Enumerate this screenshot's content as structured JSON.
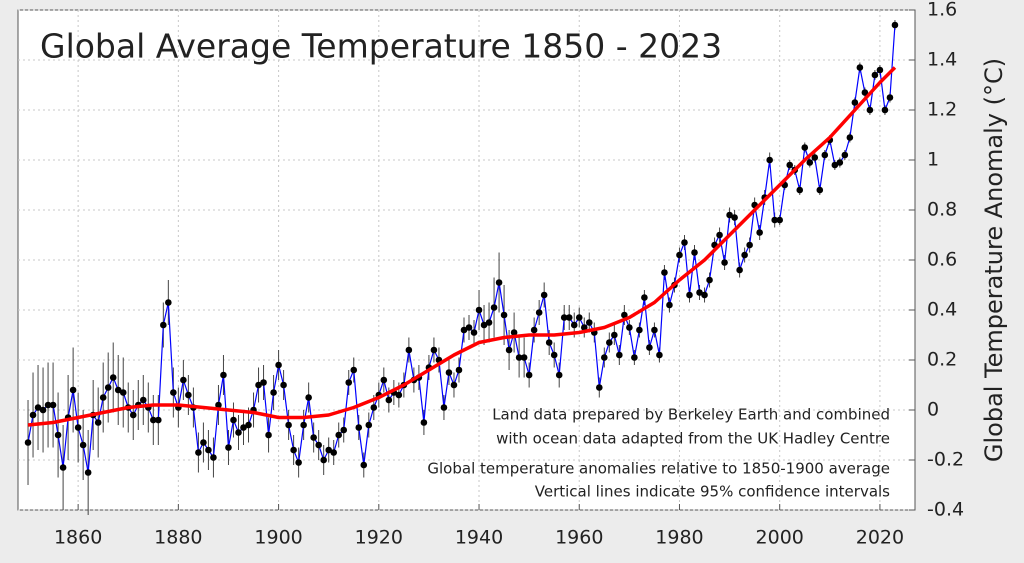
{
  "chart_data": {
    "type": "line",
    "title": "Global Average Temperature 1850 - 2023",
    "y_label": "Global Temperature Anomaly (°C)",
    "annotations": [
      "Land data prepared by Berkeley Earth and combined",
      "with ocean data adapted from the UK Hadley Centre",
      "Global temperature anomalies relative to 1850-1900 average",
      "Vertical lines indicate 95% confidence intervals"
    ],
    "xlim": [
      1848,
      2027
    ],
    "xticks": [
      1860,
      1880,
      1900,
      1920,
      1940,
      1960,
      1980,
      2000,
      2020
    ],
    "ylim": [
      -0.4,
      1.6
    ],
    "yticks": [
      -0.4,
      -0.2,
      0,
      0.2,
      0.4,
      0.6,
      0.8,
      1,
      1.2,
      1.4,
      1.6
    ],
    "grid": true,
    "y_axis_side": "right",
    "x": [
      1850,
      1851,
      1852,
      1853,
      1854,
      1855,
      1856,
      1857,
      1858,
      1859,
      1860,
      1861,
      1862,
      1863,
      1864,
      1865,
      1866,
      1867,
      1868,
      1869,
      1870,
      1871,
      1872,
      1873,
      1874,
      1875,
      1876,
      1877,
      1878,
      1879,
      1880,
      1881,
      1882,
      1883,
      1884,
      1885,
      1886,
      1887,
      1888,
      1889,
      1890,
      1891,
      1892,
      1893,
      1894,
      1895,
      1896,
      1897,
      1898,
      1899,
      1900,
      1901,
      1902,
      1903,
      1904,
      1905,
      1906,
      1907,
      1908,
      1909,
      1910,
      1911,
      1912,
      1913,
      1914,
      1915,
      1916,
      1917,
      1918,
      1919,
      1920,
      1921,
      1922,
      1923,
      1924,
      1925,
      1926,
      1927,
      1928,
      1929,
      1930,
      1931,
      1932,
      1933,
      1934,
      1935,
      1936,
      1937,
      1938,
      1939,
      1940,
      1941,
      1942,
      1943,
      1944,
      1945,
      1946,
      1947,
      1948,
      1949,
      1950,
      1951,
      1952,
      1953,
      1954,
      1955,
      1956,
      1957,
      1958,
      1959,
      1960,
      1961,
      1962,
      1963,
      1964,
      1965,
      1966,
      1967,
      1968,
      1969,
      1970,
      1971,
      1972,
      1973,
      1974,
      1975,
      1976,
      1977,
      1978,
      1979,
      1980,
      1981,
      1982,
      1983,
      1984,
      1985,
      1986,
      1987,
      1988,
      1989,
      1990,
      1991,
      1992,
      1993,
      1994,
      1995,
      1996,
      1997,
      1998,
      1999,
      2000,
      2001,
      2002,
      2003,
      2004,
      2005,
      2006,
      2007,
      2008,
      2009,
      2010,
      2011,
      2012,
      2013,
      2014,
      2015,
      2016,
      2017,
      2018,
      2019,
      2020,
      2021,
      2022,
      2023
    ],
    "series": [
      {
        "color": "#0000ff",
        "marker_color": "#000000",
        "error_color": "#444444",
        "values": [
          -0.13,
          -0.02,
          0.01,
          0.0,
          0.02,
          0.02,
          -0.1,
          -0.23,
          -0.03,
          0.08,
          -0.07,
          -0.14,
          -0.25,
          -0.02,
          -0.05,
          0.05,
          0.09,
          0.13,
          0.08,
          0.07,
          0.01,
          -0.02,
          0.02,
          0.04,
          0.01,
          -0.04,
          -0.04,
          0.34,
          0.43,
          0.07,
          0.01,
          0.12,
          0.06,
          0.01,
          -0.17,
          -0.13,
          -0.16,
          -0.19,
          0.02,
          0.14,
          -0.15,
          -0.04,
          -0.09,
          -0.07,
          -0.06,
          0.0,
          0.1,
          0.11,
          -0.1,
          0.07,
          0.18,
          0.1,
          -0.06,
          -0.16,
          -0.21,
          -0.06,
          0.05,
          -0.11,
          -0.14,
          -0.2,
          -0.16,
          -0.17,
          -0.1,
          -0.08,
          0.11,
          0.16,
          -0.07,
          -0.22,
          -0.06,
          0.01,
          0.06,
          0.12,
          0.04,
          0.07,
          0.06,
          0.1,
          0.24,
          0.12,
          0.13,
          -0.05,
          0.17,
          0.24,
          0.2,
          0.01,
          0.15,
          0.1,
          0.16,
          0.32,
          0.33,
          0.31,
          0.4,
          0.34,
          0.35,
          0.41,
          0.51,
          0.38,
          0.24,
          0.31,
          0.21,
          0.21,
          0.14,
          0.32,
          0.39,
          0.46,
          0.27,
          0.22,
          0.14,
          0.37,
          0.37,
          0.34,
          0.37,
          0.33,
          0.35,
          0.31,
          0.09,
          0.21,
          0.27,
          0.3,
          0.22,
          0.38,
          0.33,
          0.21,
          0.32,
          0.45,
          0.25,
          0.32,
          0.22,
          0.55,
          0.42,
          0.5,
          0.62,
          0.67,
          0.46,
          0.63,
          0.47,
          0.46,
          0.52,
          0.66,
          0.7,
          0.59,
          0.78,
          0.77,
          0.56,
          0.62,
          0.66,
          0.82,
          0.71,
          0.85,
          1.0,
          0.76,
          0.76,
          0.9,
          0.98,
          0.96,
          0.88,
          1.05,
          0.99,
          1.01,
          0.88,
          1.02,
          1.08,
          0.98,
          0.99,
          1.02,
          1.09,
          1.23,
          1.37,
          1.27,
          1.2,
          1.34,
          1.36,
          1.2,
          1.25,
          1.54
        ],
        "errors": [
          0.17,
          0.17,
          0.17,
          0.17,
          0.17,
          0.17,
          0.17,
          0.17,
          0.17,
          0.17,
          0.14,
          0.14,
          0.17,
          0.14,
          0.14,
          0.14,
          0.14,
          0.14,
          0.14,
          0.14,
          0.1,
          0.1,
          0.1,
          0.1,
          0.1,
          0.1,
          0.1,
          0.09,
          0.09,
          0.1,
          0.08,
          0.08,
          0.08,
          0.08,
          0.08,
          0.08,
          0.08,
          0.08,
          0.08,
          0.08,
          0.07,
          0.07,
          0.07,
          0.07,
          0.07,
          0.07,
          0.07,
          0.07,
          0.07,
          0.07,
          0.06,
          0.06,
          0.06,
          0.06,
          0.06,
          0.06,
          0.06,
          0.06,
          0.06,
          0.06,
          0.05,
          0.05,
          0.05,
          0.05,
          0.05,
          0.05,
          0.05,
          0.05,
          0.05,
          0.05,
          0.05,
          0.05,
          0.05,
          0.05,
          0.05,
          0.05,
          0.05,
          0.05,
          0.05,
          0.05,
          0.05,
          0.05,
          0.05,
          0.05,
          0.05,
          0.05,
          0.05,
          0.05,
          0.05,
          0.05,
          0.08,
          0.08,
          0.08,
          0.12,
          0.12,
          0.12,
          0.08,
          0.08,
          0.08,
          0.08,
          0.05,
          0.05,
          0.05,
          0.05,
          0.05,
          0.05,
          0.05,
          0.05,
          0.05,
          0.05,
          0.04,
          0.04,
          0.04,
          0.04,
          0.04,
          0.04,
          0.04,
          0.04,
          0.04,
          0.04,
          0.03,
          0.03,
          0.03,
          0.03,
          0.03,
          0.03,
          0.03,
          0.03,
          0.03,
          0.03,
          0.03,
          0.03,
          0.03,
          0.03,
          0.03,
          0.03,
          0.03,
          0.03,
          0.03,
          0.03,
          0.03,
          0.03,
          0.03,
          0.03,
          0.03,
          0.03,
          0.03,
          0.03,
          0.03,
          0.03,
          0.02,
          0.02,
          0.02,
          0.02,
          0.02,
          0.02,
          0.02,
          0.02,
          0.02,
          0.02,
          0.02,
          0.02,
          0.02,
          0.02,
          0.02,
          0.02,
          0.02,
          0.02,
          0.02,
          0.02,
          0.02,
          0.02,
          0.02,
          0.02
        ]
      },
      {
        "color": "#ff0000",
        "x": [
          1850,
          1855,
          1860,
          1865,
          1870,
          1875,
          1880,
          1885,
          1890,
          1895,
          1900,
          1905,
          1910,
          1915,
          1920,
          1925,
          1930,
          1935,
          1940,
          1945,
          1950,
          1955,
          1960,
          1965,
          1970,
          1975,
          1980,
          1985,
          1990,
          1995,
          2000,
          2005,
          2010,
          2015,
          2020,
          2023
        ],
        "values": [
          -0.06,
          -0.05,
          -0.03,
          -0.01,
          0.01,
          0.02,
          0.02,
          0.01,
          0.0,
          -0.01,
          -0.03,
          -0.03,
          -0.02,
          0.01,
          0.05,
          0.1,
          0.16,
          0.22,
          0.27,
          0.29,
          0.3,
          0.3,
          0.31,
          0.33,
          0.37,
          0.43,
          0.52,
          0.6,
          0.7,
          0.8,
          0.9,
          1.0,
          1.09,
          1.2,
          1.31,
          1.37
        ]
      }
    ]
  }
}
